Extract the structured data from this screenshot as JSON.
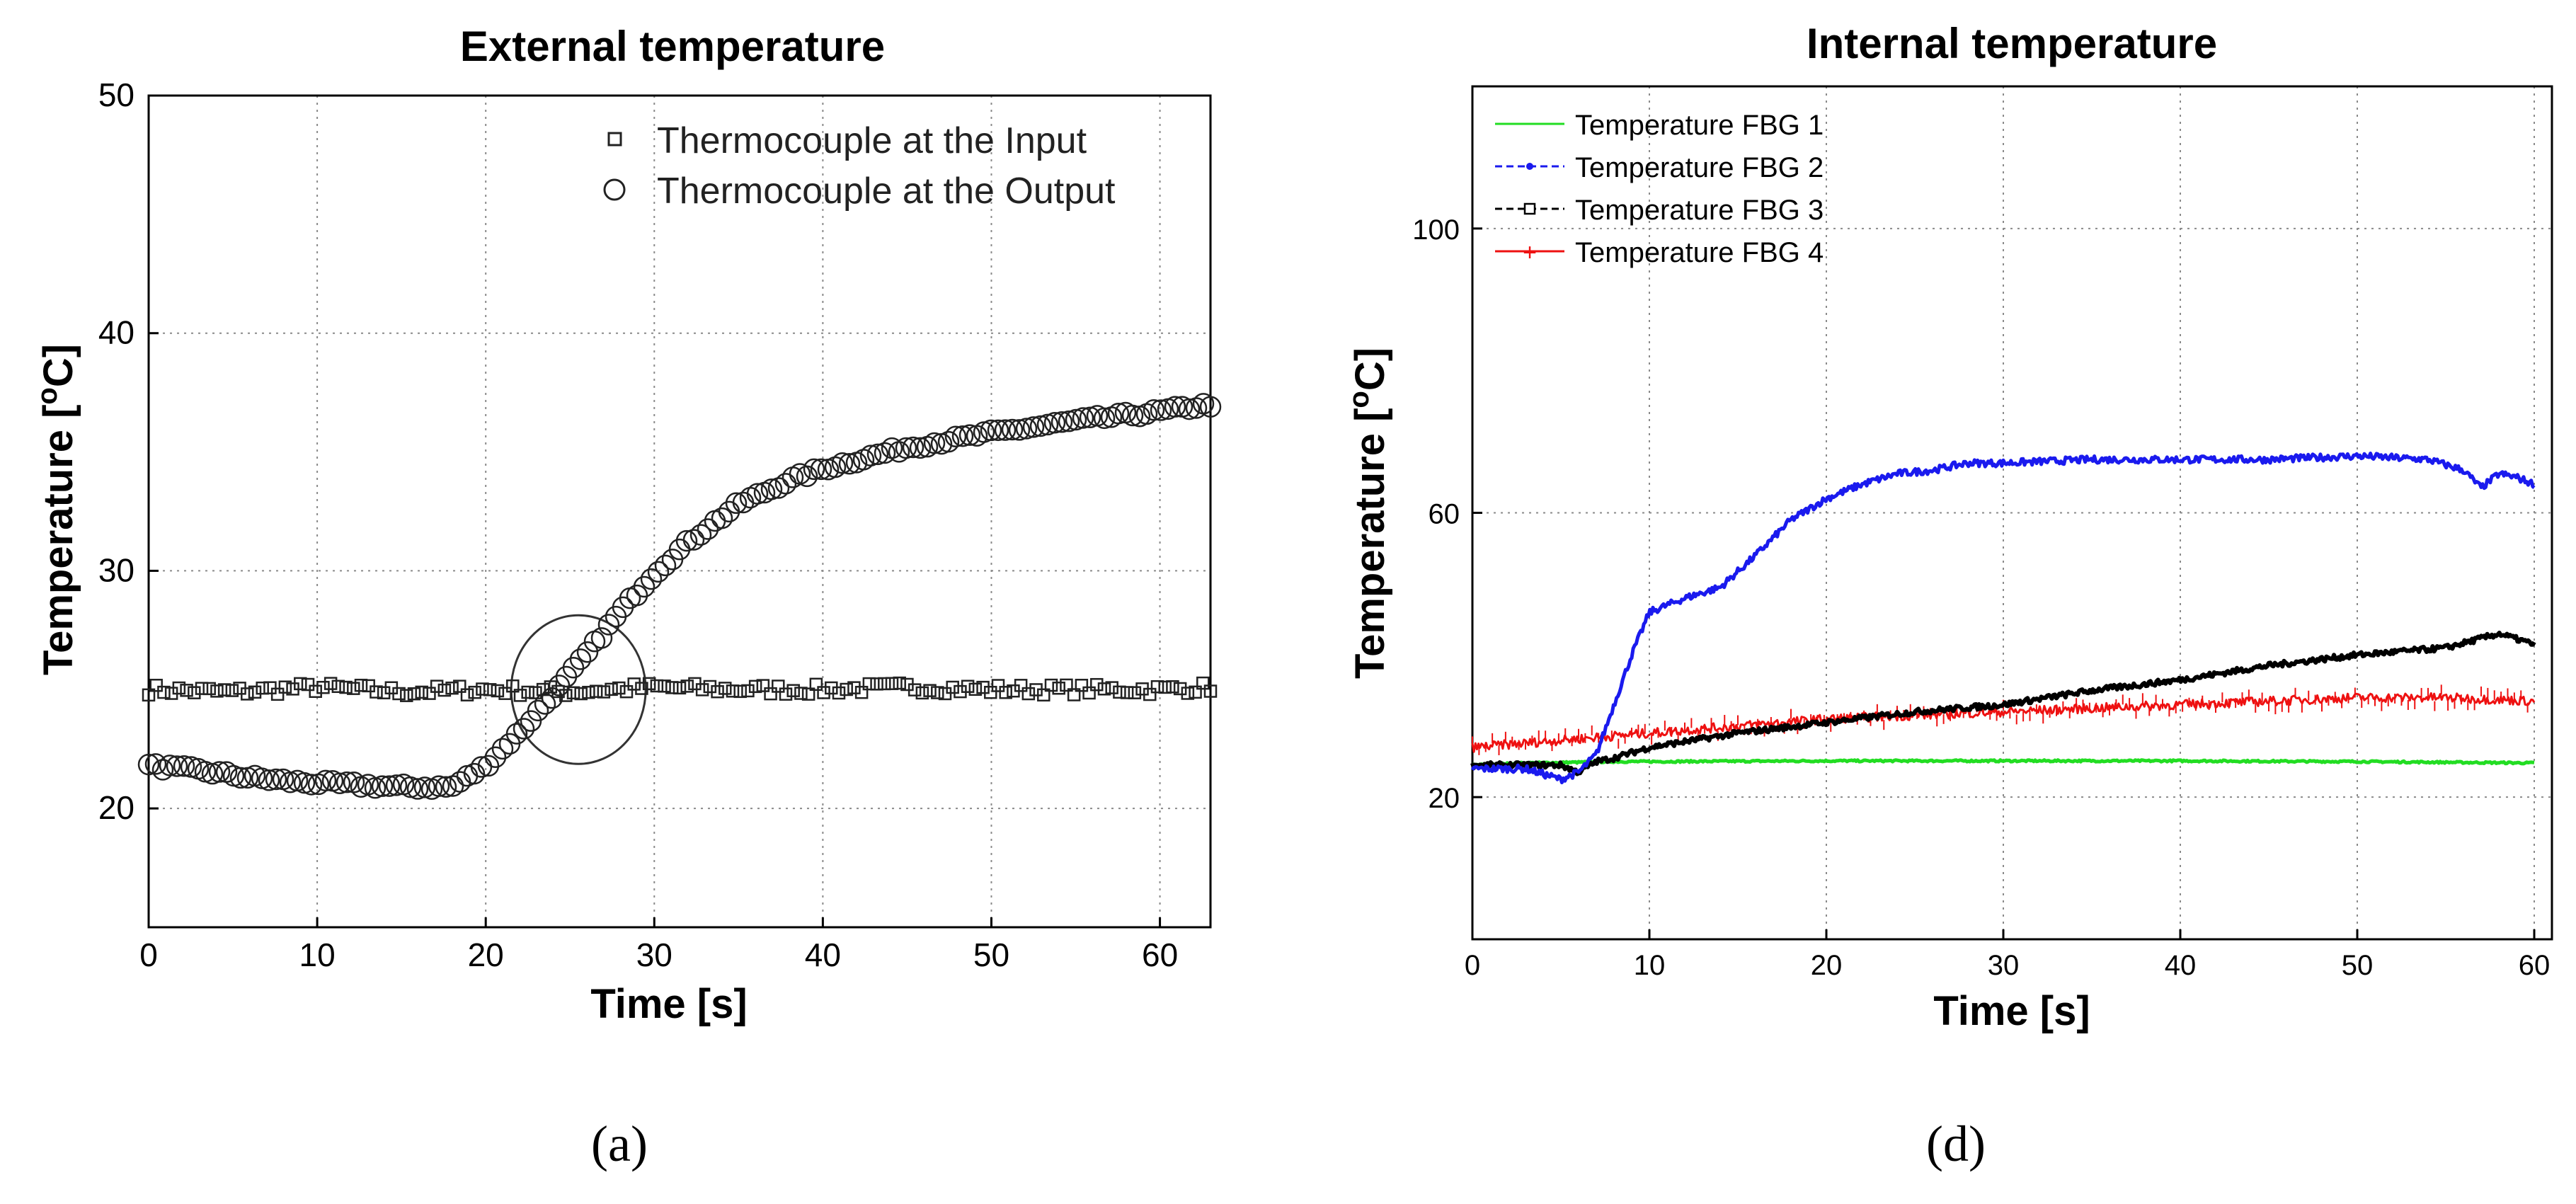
{
  "chart_data": [
    {
      "type": "scatter",
      "panel_label": "(a)",
      "title": "External temperature",
      "xlabel": "Time [s]",
      "ylabel": "Temperature [°C]",
      "ylabel_parts": {
        "main": "Temperature [",
        "sup": "o",
        "unit": "C]"
      },
      "xlim": [
        0,
        63
      ],
      "ylim": [
        15,
        50
      ],
      "xticks": [
        0,
        10,
        20,
        30,
        40,
        50,
        60
      ],
      "yticks": [
        20,
        30,
        40,
        50
      ],
      "grid": true,
      "legend_position": "top-right",
      "annotation": "ellipse around crossing point near t = 25 s",
      "series": [
        {
          "name": "Thermocouple at the Input",
          "marker": "square",
          "color": "#222222",
          "x": [
            0,
            5,
            10,
            15,
            20,
            25,
            30,
            35,
            40,
            45,
            50,
            55,
            60,
            63
          ],
          "y": [
            25.0,
            24.9,
            25.1,
            24.9,
            25.0,
            24.9,
            25.1,
            25.0,
            25.0,
            25.1,
            25.0,
            25.0,
            25.0,
            25.1
          ]
        },
        {
          "name": "Thermocouple at the Output",
          "marker": "circle",
          "color": "#222222",
          "x": [
            0,
            3,
            6,
            9,
            12,
            15,
            18,
            20,
            22,
            24,
            26,
            28,
            30,
            32,
            35,
            38,
            40,
            45,
            50,
            55,
            60,
            63
          ],
          "y": [
            21.8,
            21.6,
            21.3,
            21.1,
            21.0,
            20.9,
            20.9,
            21.8,
            23.2,
            24.8,
            26.5,
            28.3,
            29.9,
            31.2,
            32.8,
            33.8,
            34.3,
            35.2,
            35.8,
            36.3,
            36.7,
            37.0
          ]
        }
      ]
    },
    {
      "type": "line",
      "panel_label": "(d)",
      "title": "Internal temperature",
      "xlabel": "Time [s]",
      "ylabel": "Temperature [°C]",
      "ylabel_parts": {
        "main": "Temperature [",
        "sup": "o",
        "unit": "C]"
      },
      "xlim": [
        0,
        61
      ],
      "ylim": [
        0,
        120
      ],
      "xticks": [
        0,
        10,
        20,
        30,
        40,
        50,
        60
      ],
      "yticks": [
        20,
        60,
        100
      ],
      "grid": true,
      "legend_position": "top-left",
      "series": [
        {
          "name": "Temperature FBG 1",
          "color": "#22dd22",
          "x": [
            0,
            3,
            6,
            8,
            10,
            20,
            30,
            40,
            50,
            55,
            60
          ],
          "y": [
            24.5,
            24.8,
            24.9,
            25.0,
            25.0,
            25.1,
            25.1,
            25.1,
            25.0,
            24.9,
            24.8
          ]
        },
        {
          "name": "Temperature FBG 2",
          "color": "#1a1aee",
          "x": [
            0,
            3,
            5,
            6,
            7,
            8,
            9,
            10,
            12,
            14,
            16,
            18,
            20,
            22,
            24,
            26,
            28,
            30,
            35,
            40,
            45,
            50,
            54,
            56,
            57,
            58,
            59,
            60
          ],
          "y": [
            24.0,
            24.0,
            22.5,
            23.5,
            26.0,
            33.0,
            40.0,
            46.0,
            48.0,
            49.5,
            54.0,
            59.0,
            62.0,
            64.0,
            65.5,
            66.0,
            67.0,
            67.0,
            67.5,
            67.5,
            67.5,
            68.0,
            67.5,
            66.0,
            63.5,
            65.5,
            65.0,
            64.0
          ]
        },
        {
          "name": "Temperature FBG 3",
          "color": "#000000",
          "x": [
            0,
            3,
            5,
            6,
            7,
            8,
            10,
            15,
            20,
            25,
            30,
            35,
            40,
            45,
            50,
            55,
            58,
            60
          ],
          "y": [
            24.5,
            24.5,
            24.5,
            23.5,
            25.0,
            25.5,
            27.0,
            29.0,
            30.5,
            32.0,
            33.0,
            35.0,
            36.5,
            38.5,
            40.0,
            41.0,
            43.0,
            41.5
          ]
        },
        {
          "name": "Temperature FBG 4",
          "color": "#ee1111",
          "x": [
            0,
            5,
            10,
            15,
            20,
            25,
            30,
            35,
            40,
            45,
            50,
            55,
            60
          ],
          "y": [
            27.0,
            28.0,
            29.0,
            30.0,
            31.0,
            31.5,
            32.0,
            32.5,
            33.0,
            33.5,
            34.0,
            34.0,
            33.5
          ]
        }
      ]
    }
  ]
}
